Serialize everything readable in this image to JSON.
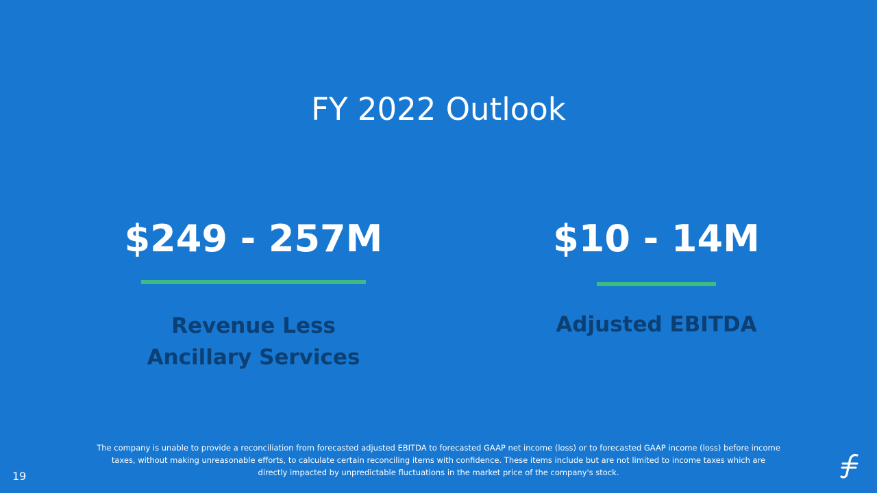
{
  "slide": {
    "title": "FY 2022 Outlook",
    "page_number": "19",
    "accent_color": "#3ebb83",
    "background_color": "#1878d1",
    "label_color": "#0c3f73"
  },
  "metrics": [
    {
      "value": "$249 - 257M",
      "label": "Revenue Less Ancillary Services"
    },
    {
      "value": "$10 - 14M",
      "label": "Adjusted EBITDA"
    }
  ],
  "footnote": "The company is unable to provide a reconciliation from forecasted adjusted EBITDA to forecasted GAAP net income (loss) or to forecasted GAAP income (loss) before income taxes, without making unreasonable efforts, to calculate certain reconciling items with confidence. These items include but are not limited to income taxes which are directly impacted by unpredictable fluctuations in the market price of the company's stock.",
  "logo": {
    "icon": "company-logo-icon"
  }
}
